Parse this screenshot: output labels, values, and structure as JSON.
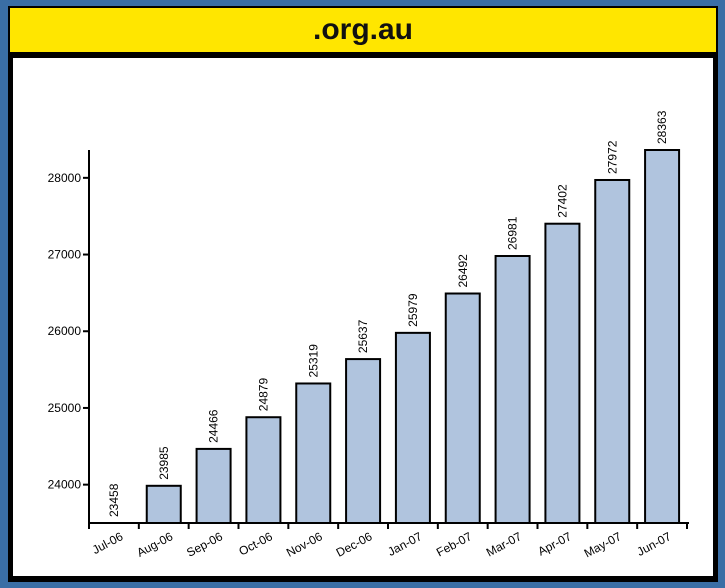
{
  "title": ".org.au",
  "colors": {
    "background": "#3a6ea5",
    "title_bar": "#ffe600",
    "bar_fill": "#b0c4de",
    "bar_stroke": "#000000"
  },
  "chart_data": {
    "type": "bar",
    "title": ".org.au",
    "xlabel": "",
    "ylabel": "",
    "categories": [
      "Jul-06",
      "Aug-06",
      "Sep-06",
      "Oct-06",
      "Nov-06",
      "Dec-06",
      "Jan-07",
      "Feb-07",
      "Mar-07",
      "Apr-07",
      "May-07",
      "Jun-07"
    ],
    "values": [
      23458,
      23985,
      24466,
      24879,
      25319,
      25637,
      25979,
      26492,
      26981,
      27402,
      27972,
      28363
    ],
    "ylim": [
      23500,
      28500
    ],
    "yticks": [
      24000,
      25000,
      26000,
      27000,
      28000
    ],
    "grid": false,
    "legend": "none"
  }
}
